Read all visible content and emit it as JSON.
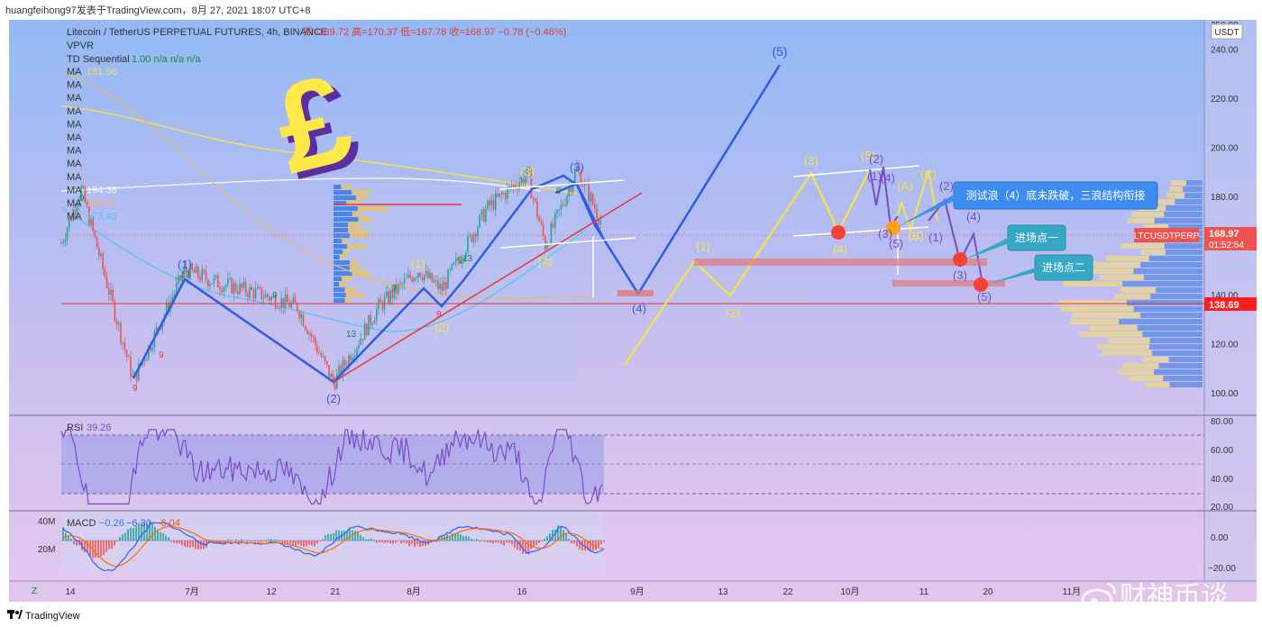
{
  "header": {
    "author_line": "huangfeihong97发表于TradingView.com，8月 27, 2021 18:07 UTC+8"
  },
  "legend": {
    "symbol": "Litecoin / TetherUS PERPETUAL FUTURES, 4h, BINANCE",
    "ohlc": "开=169.72 高=170.37 低=167.78 收=168.97 −0.78 (−0.46%)",
    "vpvr": "VPVR",
    "td": "TD Sequential",
    "td_vals": "1.00 n/a n/a n/a",
    "ma_label": "MA",
    "ma_values": [
      "181.56",
      "",
      "",
      "",
      "",
      "",
      "",
      "",
      "",
      "194.36",
      "186.87",
      "173.48"
    ]
  },
  "price_axis": {
    "currency": "USDT",
    "ticks": [
      "250.00",
      "240.00",
      "220.00",
      "200.00",
      "180.00",
      "160.00",
      "140.00",
      "120.00",
      "100.00"
    ],
    "symbol_tag": "LTCUSDTPERP",
    "last_price": "168.97",
    "countdown": "01:52:54",
    "support_price": "138.69"
  },
  "time_axis": {
    "ticks": [
      "14",
      "7月",
      "12",
      "21",
      "8月",
      "16",
      "9月",
      "13",
      "22",
      "10月",
      "11",
      "20",
      "11月"
    ]
  },
  "rsi": {
    "label": "RSI",
    "value": "39.26",
    "ticks": [
      "80.00",
      "60.00",
      "40.00",
      "20.00"
    ]
  },
  "macd": {
    "label": "MACD",
    "values": [
      "−0.26",
      "−6.30",
      "−6.04"
    ],
    "ticks": [
      "0.00",
      "−20.00"
    ],
    "volume_ticks": [
      "40M",
      "20M"
    ]
  },
  "annotations": {
    "callout_main": "测试浪（4）底未跌破，三浪结构衔接",
    "entry1": "进场点一",
    "entry2": "进场点二",
    "pound": "£",
    "waves_blue": [
      "(1)",
      "(2)",
      "(3)",
      "(4)",
      "(5)"
    ],
    "waves_yellow": [
      "(1)",
      "(2)",
      "(3)",
      "(4)",
      "(5)",
      "(A)",
      "(B)",
      "(C)"
    ],
    "waves_purple": [
      "(1)",
      "(2)",
      "(3)",
      "(4)",
      "(5)"
    ],
    "td_counts": [
      "9",
      "13"
    ]
  },
  "footer": {
    "brand": "TradingView",
    "watermark": "财神币谈",
    "z_button": "Z"
  },
  "colors": {
    "bg_top": "#9dbcf2",
    "bg_bottom": "#e5c9ee",
    "wave_blue": "#2f5ce6",
    "wave_yellow": "#f5e34a",
    "wave_purple": "#7a4cc6",
    "trend_red": "#e53935",
    "callout": "#3d8df0",
    "entry": "#35a9c4"
  },
  "chart_data": {
    "type": "line",
    "title": "Litecoin / TetherUS PERPETUAL FUTURES, 4h, BINANCE",
    "ylim": [
      96,
      252
    ],
    "support": 138.69,
    "last": 168.97,
    "price_path": [
      {
        "x": "6月14",
        "y": 161
      },
      {
        "x": "6月15",
        "y": 183
      },
      {
        "x": "6月22",
        "y": 105
      },
      {
        "x": "6月25",
        "y": 150
      },
      {
        "x": "7月1",
        "y": 145
      },
      {
        "x": "7月7",
        "y": 140
      },
      {
        "x": "7月13",
        "y": 135
      },
      {
        "x": "7月21",
        "y": 104
      },
      {
        "x": "7月28",
        "y": 135
      },
      {
        "x": "8月3",
        "y": 150
      },
      {
        "x": "8月6",
        "y": 142
      },
      {
        "x": "8月13",
        "y": 175
      },
      {
        "x": "8月16",
        "y": 189
      },
      {
        "x": "8月19",
        "y": 160
      },
      {
        "x": "8月22",
        "y": 191
      },
      {
        "x": "8月27",
        "y": 168.97
      }
    ],
    "projection": [
      {
        "wave": "(3)",
        "y": 190
      },
      {
        "wave": "(4)",
        "y": 143
      },
      {
        "wave": "(5)",
        "y": 241
      }
    ],
    "rsi_last": 39.26,
    "macd_last": [
      -0.26,
      -6.3,
      -6.04
    ]
  }
}
